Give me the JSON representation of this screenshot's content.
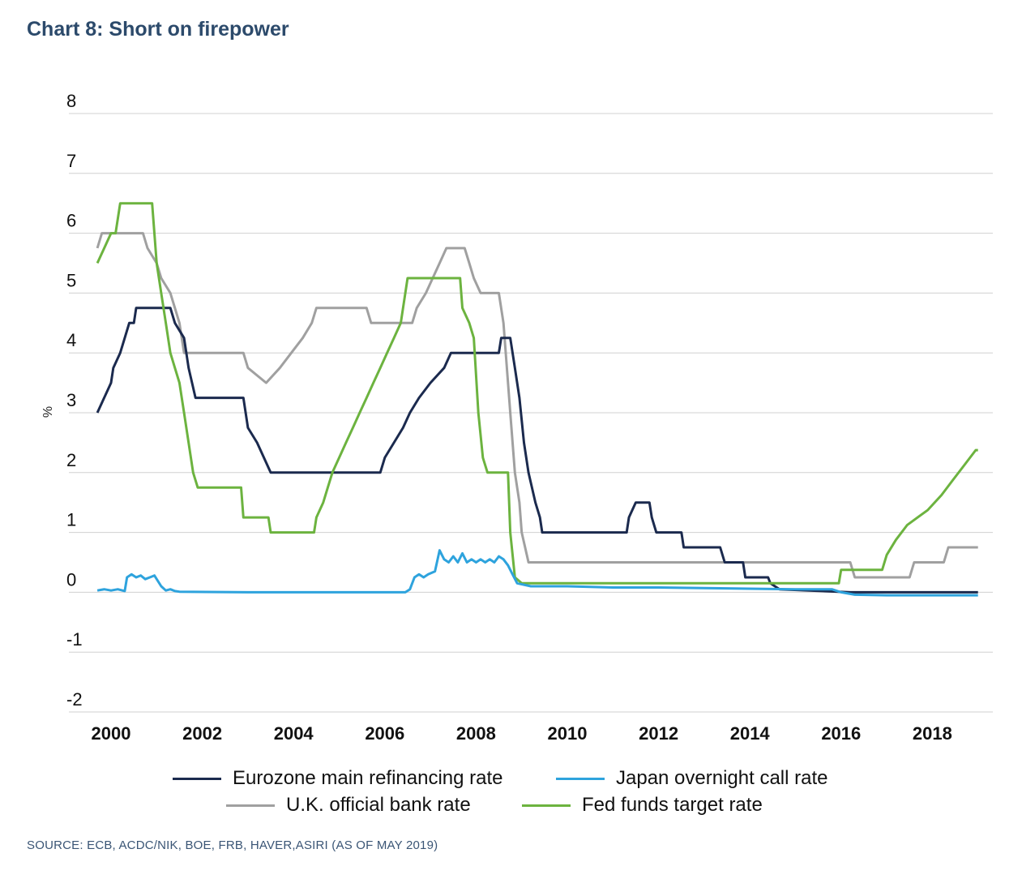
{
  "title": "Chart 8: Short on firepower",
  "source": "SOURCE: ECB, ACDC/NIK, BOE, FRB, HAVER,ASIRI (AS OF MAY 2019)",
  "chart_data": {
    "type": "line",
    "ylabel": "%",
    "ylim": [
      -2,
      8
    ],
    "xlim": [
      1999.7,
      2019.0
    ],
    "yticks": [
      "8",
      "7",
      "6",
      "5",
      "4",
      "3",
      "2",
      "1",
      "0",
      "-1",
      "-2"
    ],
    "xticks": [
      "2000",
      "2002",
      "2004",
      "2006",
      "2008",
      "2010",
      "2012",
      "2014",
      "2016",
      "2018"
    ],
    "series": [
      {
        "name": "U.K. official bank rate",
        "color": "#a0a0a0",
        "points": [
          [
            1999.7,
            5.75
          ],
          [
            1999.8,
            6.0
          ],
          [
            2000.7,
            6.0
          ],
          [
            2000.8,
            5.75
          ],
          [
            2001.0,
            5.5
          ],
          [
            2001.1,
            5.25
          ],
          [
            2001.3,
            5.0
          ],
          [
            2001.4,
            4.75
          ],
          [
            2001.5,
            4.5
          ],
          [
            2001.6,
            4.0
          ],
          [
            2002.9,
            4.0
          ],
          [
            2003.0,
            3.75
          ],
          [
            2003.4,
            3.5
          ],
          [
            2003.7,
            3.75
          ],
          [
            2003.95,
            4.0
          ],
          [
            2004.2,
            4.25
          ],
          [
            2004.4,
            4.5
          ],
          [
            2004.5,
            4.75
          ],
          [
            2005.6,
            4.75
          ],
          [
            2005.7,
            4.5
          ],
          [
            2006.6,
            4.5
          ],
          [
            2006.7,
            4.75
          ],
          [
            2006.9,
            5.0
          ],
          [
            2007.05,
            5.25
          ],
          [
            2007.2,
            5.5
          ],
          [
            2007.35,
            5.75
          ],
          [
            2007.75,
            5.75
          ],
          [
            2007.85,
            5.5
          ],
          [
            2007.95,
            5.25
          ],
          [
            2008.1,
            5.0
          ],
          [
            2008.25,
            5.0
          ],
          [
            2008.5,
            5.0
          ],
          [
            2008.6,
            4.5
          ],
          [
            2008.75,
            3.0
          ],
          [
            2008.85,
            2.0
          ],
          [
            2008.95,
            1.5
          ],
          [
            2009.0,
            1.0
          ],
          [
            2009.15,
            0.5
          ],
          [
            2016.2,
            0.5
          ],
          [
            2016.3,
            0.25
          ],
          [
            2017.5,
            0.25
          ],
          [
            2017.6,
            0.5
          ],
          [
            2018.25,
            0.5
          ],
          [
            2018.35,
            0.75
          ],
          [
            2019.0,
            0.75
          ]
        ]
      },
      {
        "name": "Eurozone main refinancing rate",
        "color": "#1b2a4e",
        "points": [
          [
            1999.7,
            3.0
          ],
          [
            2000.0,
            3.5
          ],
          [
            2000.05,
            3.75
          ],
          [
            2000.2,
            4.0
          ],
          [
            2000.3,
            4.25
          ],
          [
            2000.4,
            4.5
          ],
          [
            2000.5,
            4.5
          ],
          [
            2000.55,
            4.75
          ],
          [
            2001.3,
            4.75
          ],
          [
            2001.4,
            4.5
          ],
          [
            2001.6,
            4.25
          ],
          [
            2001.7,
            3.75
          ],
          [
            2001.85,
            3.25
          ],
          [
            2001.95,
            3.25
          ],
          [
            2002.9,
            3.25
          ],
          [
            2003.0,
            2.75
          ],
          [
            2003.2,
            2.5
          ],
          [
            2003.5,
            2.0
          ],
          [
            2005.9,
            2.0
          ],
          [
            2006.0,
            2.25
          ],
          [
            2006.2,
            2.5
          ],
          [
            2006.4,
            2.75
          ],
          [
            2006.55,
            3.0
          ],
          [
            2006.75,
            3.25
          ],
          [
            2007.0,
            3.5
          ],
          [
            2007.3,
            3.75
          ],
          [
            2007.45,
            4.0
          ],
          [
            2008.5,
            4.0
          ],
          [
            2008.55,
            4.25
          ],
          [
            2008.75,
            4.25
          ],
          [
            2008.85,
            3.75
          ],
          [
            2008.95,
            3.25
          ],
          [
            2009.05,
            2.5
          ],
          [
            2009.15,
            2.0
          ],
          [
            2009.3,
            1.5
          ],
          [
            2009.4,
            1.25
          ],
          [
            2009.45,
            1.0
          ],
          [
            2011.3,
            1.0
          ],
          [
            2011.35,
            1.25
          ],
          [
            2011.5,
            1.5
          ],
          [
            2011.8,
            1.5
          ],
          [
            2011.85,
            1.25
          ],
          [
            2011.95,
            1.0
          ],
          [
            2012.5,
            1.0
          ],
          [
            2012.55,
            0.75
          ],
          [
            2013.35,
            0.75
          ],
          [
            2013.45,
            0.5
          ],
          [
            2013.85,
            0.5
          ],
          [
            2013.9,
            0.25
          ],
          [
            2014.4,
            0.25
          ],
          [
            2014.45,
            0.15
          ],
          [
            2014.65,
            0.05
          ],
          [
            2016.2,
            0.0
          ],
          [
            2019.0,
            0.0
          ]
        ]
      },
      {
        "name": "Fed funds target rate",
        "color": "#6cb33f",
        "points": [
          [
            1999.7,
            5.5
          ],
          [
            1999.85,
            5.75
          ],
          [
            2000.0,
            6.0
          ],
          [
            2000.1,
            6.0
          ],
          [
            2000.2,
            6.5
          ],
          [
            2000.4,
            6.5
          ],
          [
            2000.6,
            6.5
          ],
          [
            2000.9,
            6.5
          ],
          [
            2000.95,
            6.0
          ],
          [
            2001.0,
            5.5
          ],
          [
            2001.1,
            5.0
          ],
          [
            2001.2,
            4.5
          ],
          [
            2001.3,
            4.0
          ],
          [
            2001.4,
            3.75
          ],
          [
            2001.5,
            3.5
          ],
          [
            2001.6,
            3.0
          ],
          [
            2001.7,
            2.5
          ],
          [
            2001.8,
            2.0
          ],
          [
            2001.9,
            1.75
          ],
          [
            2002.85,
            1.75
          ],
          [
            2002.9,
            1.25
          ],
          [
            2003.45,
            1.25
          ],
          [
            2003.5,
            1.0
          ],
          [
            2004.45,
            1.0
          ],
          [
            2004.5,
            1.25
          ],
          [
            2004.65,
            1.5
          ],
          [
            2004.75,
            1.75
          ],
          [
            2004.85,
            2.0
          ],
          [
            2005.0,
            2.25
          ],
          [
            2005.15,
            2.5
          ],
          [
            2005.3,
            2.75
          ],
          [
            2005.45,
            3.0
          ],
          [
            2005.6,
            3.25
          ],
          [
            2005.75,
            3.5
          ],
          [
            2005.9,
            3.75
          ],
          [
            2006.05,
            4.0
          ],
          [
            2006.2,
            4.25
          ],
          [
            2006.35,
            4.5
          ],
          [
            2006.5,
            5.25
          ],
          [
            2007.65,
            5.25
          ],
          [
            2007.7,
            4.75
          ],
          [
            2007.85,
            4.5
          ],
          [
            2007.95,
            4.25
          ],
          [
            2008.05,
            3.0
          ],
          [
            2008.15,
            2.25
          ],
          [
            2008.25,
            2.0
          ],
          [
            2008.7,
            2.0
          ],
          [
            2008.75,
            1.0
          ],
          [
            2008.85,
            0.25
          ],
          [
            2009.0,
            0.15
          ],
          [
            2015.95,
            0.15
          ],
          [
            2016.0,
            0.375
          ],
          [
            2016.9,
            0.375
          ],
          [
            2017.0,
            0.625
          ],
          [
            2017.2,
            0.875
          ],
          [
            2017.45,
            1.125
          ],
          [
            2017.9,
            1.375
          ],
          [
            2018.2,
            1.625
          ],
          [
            2018.45,
            1.875
          ],
          [
            2018.7,
            2.125
          ],
          [
            2018.95,
            2.375
          ],
          [
            2019.0,
            2.375
          ]
        ]
      },
      {
        "name": "Japan overnight call rate",
        "color": "#2ea3dd",
        "points": [
          [
            1999.7,
            0.03
          ],
          [
            1999.85,
            0.05
          ],
          [
            2000.0,
            0.03
          ],
          [
            2000.15,
            0.05
          ],
          [
            2000.3,
            0.02
          ],
          [
            2000.35,
            0.25
          ],
          [
            2000.45,
            0.3
          ],
          [
            2000.55,
            0.25
          ],
          [
            2000.65,
            0.28
          ],
          [
            2000.75,
            0.22
          ],
          [
            2000.85,
            0.25
          ],
          [
            2000.95,
            0.28
          ],
          [
            2001.1,
            0.1
          ],
          [
            2001.2,
            0.03
          ],
          [
            2001.3,
            0.05
          ],
          [
            2001.4,
            0.02
          ],
          [
            2001.5,
            0.01
          ],
          [
            2003.0,
            0.0
          ],
          [
            2005.0,
            0.0
          ],
          [
            2006.45,
            0.0
          ],
          [
            2006.55,
            0.05
          ],
          [
            2006.65,
            0.25
          ],
          [
            2006.75,
            0.3
          ],
          [
            2006.85,
            0.25
          ],
          [
            2006.95,
            0.3
          ],
          [
            2007.1,
            0.35
          ],
          [
            2007.2,
            0.7
          ],
          [
            2007.3,
            0.55
          ],
          [
            2007.4,
            0.5
          ],
          [
            2007.5,
            0.6
          ],
          [
            2007.6,
            0.5
          ],
          [
            2007.7,
            0.65
          ],
          [
            2007.8,
            0.5
          ],
          [
            2007.9,
            0.55
          ],
          [
            2008.0,
            0.5
          ],
          [
            2008.1,
            0.55
          ],
          [
            2008.2,
            0.5
          ],
          [
            2008.3,
            0.55
          ],
          [
            2008.4,
            0.5
          ],
          [
            2008.5,
            0.6
          ],
          [
            2008.6,
            0.55
          ],
          [
            2008.7,
            0.45
          ],
          [
            2008.8,
            0.3
          ],
          [
            2008.9,
            0.15
          ],
          [
            2009.2,
            0.1
          ],
          [
            2010.0,
            0.1
          ],
          [
            2011.0,
            0.08
          ],
          [
            2012.0,
            0.08
          ],
          [
            2013.0,
            0.07
          ],
          [
            2014.0,
            0.06
          ],
          [
            2015.0,
            0.05
          ],
          [
            2015.8,
            0.05
          ],
          [
            2016.0,
            0.0
          ],
          [
            2016.3,
            -0.04
          ],
          [
            2017.0,
            -0.05
          ],
          [
            2018.0,
            -0.05
          ],
          [
            2019.0,
            -0.05
          ]
        ]
      }
    ],
    "legend": [
      {
        "label": "Eurozone main refinancing rate",
        "color": "#1b2a4e"
      },
      {
        "label": "Japan overnight call rate",
        "color": "#2ea3dd"
      },
      {
        "label": "U.K. official bank rate",
        "color": "#a0a0a0"
      },
      {
        "label": "Fed funds target rate",
        "color": "#6cb33f"
      }
    ]
  }
}
